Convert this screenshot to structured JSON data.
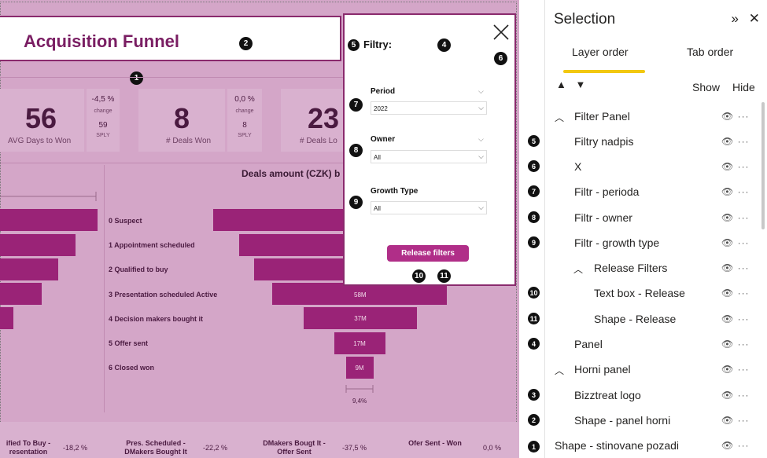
{
  "report": {
    "title": "Acquisition Funnel",
    "kpis": [
      {
        "value": "56",
        "label": "AVG Days to Won",
        "change": "-4,5 %",
        "change_label": "change",
        "sply": "59",
        "sply_label": "SPLY"
      },
      {
        "value": "8",
        "label": "# Deals Won",
        "change": "0,0 %",
        "change_label": "change",
        "sply": "8",
        "sply_label": "SPLY"
      },
      {
        "value": "23",
        "label": "# Deals Lo"
      }
    ],
    "funnel": {
      "title": "Deals amount (CZK) b",
      "stages": [
        "0 Suspect",
        "1 Appointment scheduled",
        "2 Qualified to buy",
        "3 Presentation scheduled Active",
        "4 Decision makers bought it",
        "5 Offer sent",
        "6 Closed won"
      ],
      "bar_labels": [
        "",
        "",
        "",
        "58M",
        "37M",
        "17M",
        "9M"
      ],
      "bottom_pct": "9,4%"
    },
    "bottom": [
      {
        "label": "ified To Buy -\nresentation",
        "value": "-18,2 %"
      },
      {
        "label": "Pres. Scheduled -\nDMakers Bought It",
        "value": "-22,2 %"
      },
      {
        "label": "DMakers Bougt It -\nOffer Sent",
        "value": "-37,5 %"
      },
      {
        "label": "Ofer Sent - Won",
        "value": "0,0 %"
      }
    ]
  },
  "filter_panel": {
    "heading": "Filtry:",
    "period": {
      "label": "Period",
      "value": "2022"
    },
    "owner": {
      "label": "Owner",
      "value": "All"
    },
    "growth": {
      "label": "Growth Type",
      "value": "All"
    },
    "release_label": "Release filters"
  },
  "badges": [
    "1",
    "2",
    "3",
    "4",
    "5",
    "6",
    "7",
    "8",
    "9",
    "10",
    "11"
  ],
  "selection_pane": {
    "title": "Selection",
    "tabs": [
      "Layer order",
      "Tab order"
    ],
    "show_label": "Show",
    "hide_label": "Hide",
    "layers": [
      {
        "name": "Filter Panel",
        "badge": ""
      },
      {
        "name": "Filtry nadpis",
        "badge": "5"
      },
      {
        "name": "X",
        "badge": "6"
      },
      {
        "name": "Filtr - perioda",
        "badge": "7"
      },
      {
        "name": "Filtr - owner",
        "badge": "8"
      },
      {
        "name": "Filtr - growth type",
        "badge": "9"
      },
      {
        "name": "Release Filters",
        "badge": ""
      },
      {
        "name": "Text box - Release",
        "badge": "10"
      },
      {
        "name": "Shape - Release",
        "badge": "11"
      },
      {
        "name": "Panel",
        "badge": "4"
      },
      {
        "name": "Horni panel",
        "badge": ""
      },
      {
        "name": "Bizztreat logo",
        "badge": "3"
      },
      {
        "name": "Shape - panel horni",
        "badge": "2"
      },
      {
        "name": "Shape - stinovane pozadi",
        "badge": "1"
      }
    ]
  },
  "colors": {
    "accent": "#8a2a6d",
    "bar": "#9a2377",
    "tab_underline": "#f2c811"
  }
}
